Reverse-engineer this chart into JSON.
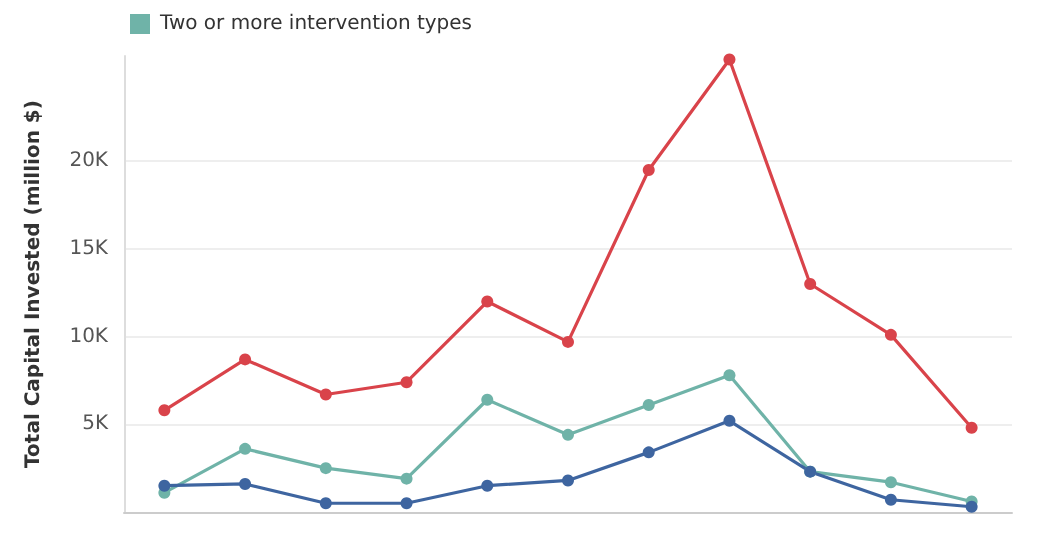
{
  "chart_data": {
    "type": "line",
    "ylabel": "Total Capital Invested (million $)",
    "categories": [
      null,
      null,
      null,
      null,
      null,
      null,
      null,
      null,
      null,
      null,
      null
    ],
    "series": [
      {
        "color": "#d9434a",
        "values": [
          5800,
          8700,
          6700,
          7400,
          12000,
          9700,
          19500,
          25800,
          13000,
          10100,
          4800
        ]
      },
      {
        "name": "Two or more intervention types",
        "color": "#6fb3a8",
        "values": [
          1100,
          3600,
          2500,
          1900,
          6400,
          4400,
          6100,
          7800,
          2300,
          1700,
          600
        ]
      },
      {
        "color": "#3e65a0",
        "values": [
          1500,
          1600,
          500,
          500,
          1500,
          1800,
          3400,
          5200,
          2300,
          700,
          300
        ]
      }
    ],
    "ylim": [
      0,
      26000
    ],
    "yticks": [
      {
        "value": 5000,
        "label": "5K"
      },
      {
        "value": 10000,
        "label": "10K"
      },
      {
        "value": 15000,
        "label": "15K"
      },
      {
        "value": 20000,
        "label": "20K"
      }
    ],
    "grid": "y",
    "legend": "top left",
    "marker": "circle",
    "line_style": "solid"
  }
}
